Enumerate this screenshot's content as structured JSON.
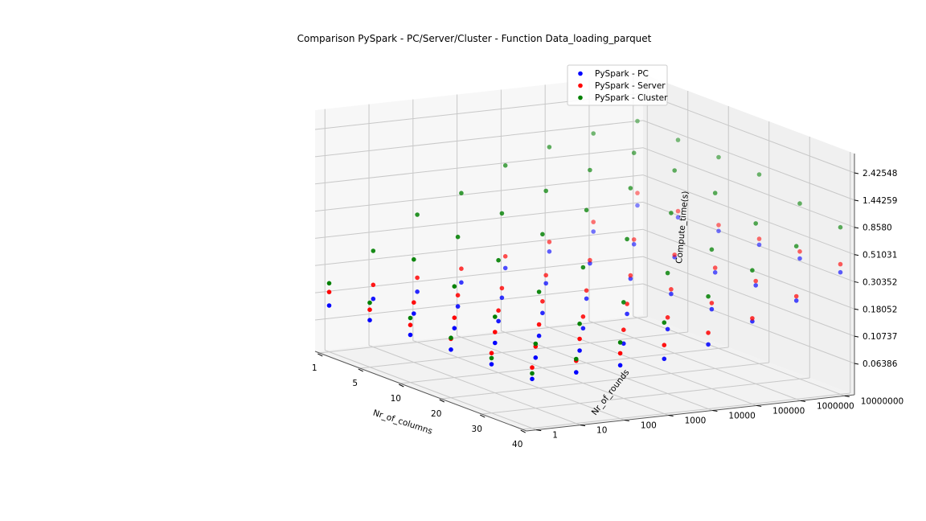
{
  "chart_data": {
    "type": "scatter",
    "projection": "3d",
    "title": "Comparison PySpark - PC/Server/Cluster - Function Data_loading_parquet",
    "xlabel": "Nr_of_columns",
    "ylabel": "Nr_of_rounds",
    "zlabel": "Compute_time(s)",
    "x_ticks": [
      "1",
      "5",
      "10",
      "20",
      "30",
      "40"
    ],
    "y_ticks": [
      "1",
      "10",
      "100",
      "1000",
      "10000",
      "100000",
      "1000000",
      "10000000"
    ],
    "z_ticks": [
      "0.06386",
      "0.10737",
      "0.18052",
      "0.30352",
      "0.51031",
      "0.8580",
      "1.44259",
      "2.42548"
    ],
    "z_scale": "log",
    "grid": true,
    "legend_position": "top-right",
    "series": [
      {
        "name": "PySpark - PC",
        "color": "#0000ff",
        "points": [
          [
            1,
            1,
            0.085
          ],
          [
            1,
            10,
            0.088
          ],
          [
            1,
            100,
            0.092
          ],
          [
            1,
            1000,
            0.1
          ],
          [
            1,
            10000,
            0.12
          ],
          [
            1,
            100000,
            0.15
          ],
          [
            1,
            1000000,
            0.2
          ],
          [
            1,
            10000000,
            0.3
          ],
          [
            5,
            1,
            0.086
          ],
          [
            5,
            10,
            0.089
          ],
          [
            5,
            100,
            0.093
          ],
          [
            5,
            1000,
            0.1
          ],
          [
            5,
            10000,
            0.12
          ],
          [
            5,
            100000,
            0.16
          ],
          [
            5,
            1000000,
            0.21
          ],
          [
            5,
            10000000,
            0.32
          ],
          [
            10,
            1,
            0.087
          ],
          [
            10,
            10,
            0.09
          ],
          [
            10,
            100,
            0.094
          ],
          [
            10,
            1000,
            0.1
          ],
          [
            10,
            10000,
            0.12
          ],
          [
            10,
            100000,
            0.16
          ],
          [
            10,
            1000000,
            0.22
          ],
          [
            10,
            10000000,
            0.33
          ],
          [
            20,
            1,
            0.088
          ],
          [
            20,
            10,
            0.091
          ],
          [
            20,
            100,
            0.095
          ],
          [
            20,
            1000,
            0.1
          ],
          [
            20,
            10000,
            0.12
          ],
          [
            20,
            100000,
            0.16
          ],
          [
            20,
            1000000,
            0.22
          ],
          [
            20,
            10000000,
            0.34
          ],
          [
            30,
            1,
            0.089
          ],
          [
            30,
            10,
            0.092
          ],
          [
            30,
            100,
            0.096
          ],
          [
            30,
            1000,
            0.1
          ],
          [
            30,
            10000,
            0.12
          ],
          [
            30,
            100000,
            0.16
          ],
          [
            30,
            1000000,
            0.23
          ],
          [
            30,
            10000000,
            0.35
          ],
          [
            40,
            1,
            0.09
          ],
          [
            40,
            10,
            0.093
          ],
          [
            40,
            100,
            0.097
          ],
          [
            40,
            1000,
            0.1
          ],
          [
            40,
            10000,
            0.12
          ],
          [
            40,
            100000,
            0.17
          ],
          [
            40,
            1000000,
            0.23
          ],
          [
            40,
            10000000,
            0.36
          ]
        ]
      },
      {
        "name": "PySpark - Server",
        "color": "#ff0000",
        "points": [
          [
            1,
            1,
            0.11
          ],
          [
            1,
            10,
            0.115
          ],
          [
            1,
            100,
            0.12
          ],
          [
            1,
            1000,
            0.13
          ],
          [
            1,
            10000,
            0.15
          ],
          [
            1,
            100000,
            0.18
          ],
          [
            1,
            1000000,
            0.24
          ],
          [
            1,
            10000000,
            0.38
          ],
          [
            5,
            1,
            0.105
          ],
          [
            5,
            10,
            0.11
          ],
          [
            5,
            100,
            0.115
          ],
          [
            5,
            1000,
            0.12
          ],
          [
            5,
            10000,
            0.14
          ],
          [
            5,
            100000,
            0.17
          ],
          [
            5,
            1000000,
            0.23
          ],
          [
            5,
            10000000,
            0.36
          ],
          [
            10,
            1,
            0.105
          ],
          [
            10,
            10,
            0.11
          ],
          [
            10,
            100,
            0.115
          ],
          [
            10,
            1000,
            0.125
          ],
          [
            10,
            10000,
            0.14
          ],
          [
            10,
            100000,
            0.17
          ],
          [
            10,
            1000000,
            0.23
          ],
          [
            10,
            10000000,
            0.37
          ],
          [
            20,
            1,
            0.108
          ],
          [
            20,
            10,
            0.112
          ],
          [
            20,
            100,
            0.118
          ],
          [
            20,
            1000,
            0.125
          ],
          [
            20,
            10000,
            0.145
          ],
          [
            20,
            100000,
            0.175
          ],
          [
            20,
            1000000,
            0.24
          ],
          [
            20,
            10000000,
            0.38
          ],
          [
            30,
            1,
            0.11
          ],
          [
            30,
            10,
            0.114
          ],
          [
            30,
            100,
            0.12
          ],
          [
            30,
            1000,
            0.13
          ],
          [
            30,
            10000,
            0.15
          ],
          [
            30,
            100000,
            0.18
          ],
          [
            30,
            1000000,
            0.25
          ],
          [
            30,
            10000000,
            0.4
          ],
          [
            40,
            1,
            0.112
          ],
          [
            40,
            10,
            0.116
          ],
          [
            40,
            100,
            0.122
          ],
          [
            40,
            1000,
            0.13
          ],
          [
            40,
            10000,
            0.15
          ],
          [
            40,
            100000,
            0.18
          ],
          [
            40,
            1000000,
            0.25
          ],
          [
            40,
            10000000,
            0.42
          ]
        ]
      },
      {
        "name": "PySpark - Cluster",
        "color": "#008000",
        "points": [
          [
            1,
            1,
            0.13
          ],
          [
            1,
            10,
            0.22
          ],
          [
            1,
            100,
            0.4
          ],
          [
            1,
            1000,
            0.55
          ],
          [
            1,
            10000,
            0.85
          ],
          [
            1,
            100000,
            1.1
          ],
          [
            1,
            1000000,
            1.3
          ],
          [
            1,
            10000000,
            1.5
          ],
          [
            5,
            1,
            0.12
          ],
          [
            5,
            10,
            0.25
          ],
          [
            5,
            100,
            0.35
          ],
          [
            5,
            1000,
            0.5
          ],
          [
            5,
            10000,
            0.7
          ],
          [
            5,
            100000,
            0.95
          ],
          [
            5,
            1000000,
            1.2
          ],
          [
            5,
            10000000,
            1.4
          ],
          [
            10,
            1,
            0.12
          ],
          [
            10,
            10,
            0.2
          ],
          [
            10,
            100,
            0.3
          ],
          [
            10,
            1000,
            0.45
          ],
          [
            10,
            10000,
            0.65
          ],
          [
            10,
            100000,
            0.9
          ],
          [
            10,
            1000000,
            1.15
          ],
          [
            10,
            10000000,
            1.35
          ],
          [
            20,
            1,
            0.11
          ],
          [
            20,
            10,
            0.15
          ],
          [
            20,
            100,
            0.22
          ],
          [
            20,
            1000,
            0.32
          ],
          [
            20,
            10000,
            0.5
          ],
          [
            20,
            100000,
            0.75
          ],
          [
            20,
            1000000,
            1.0
          ],
          [
            20,
            10000000,
            1.3
          ],
          [
            30,
            1,
            0.1
          ],
          [
            30,
            10,
            0.12
          ],
          [
            30,
            100,
            0.16
          ],
          [
            30,
            1000,
            0.22
          ],
          [
            30,
            10000,
            0.35
          ],
          [
            30,
            100000,
            0.5
          ],
          [
            30,
            1000000,
            0.75
          ],
          [
            30,
            10000000,
            1.0
          ],
          [
            40,
            1,
            0.1
          ],
          [
            40,
            10,
            0.12
          ],
          [
            40,
            100,
            0.15
          ],
          [
            40,
            1000,
            0.2
          ],
          [
            40,
            10000,
            0.3
          ],
          [
            40,
            100000,
            0.45
          ],
          [
            40,
            1000000,
            0.65
          ],
          [
            40,
            10000000,
            0.85
          ]
        ]
      }
    ]
  }
}
